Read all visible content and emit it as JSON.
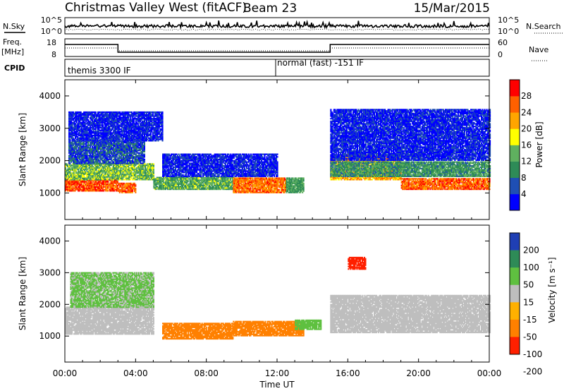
{
  "header": {
    "title": "Christmas Valley West (fitACF)",
    "beam": "Beam 23",
    "date": "15/Mar/2015"
  },
  "top_panels": {
    "nsky_label": "N.Sky",
    "nsearch_label": "N.Search",
    "nsky_tick_hi": "10^5",
    "nsky_tick_lo": "10^0",
    "freq_label": "Freq.",
    "freq_unit": "[MHz]",
    "freq_tick_hi": "18",
    "freq_tick_lo": "8",
    "nave_label": "Nave",
    "nave_tick_hi": "60",
    "nave_tick_lo": "0",
    "cpid_label": "CPID",
    "cpid_mode_1": "themis 3300 IF",
    "cpid_mode_2": "normal (fast) -151 IF"
  },
  "axes": {
    "xlabel": "Time UT",
    "x_ticks": [
      "00:00",
      "04:00",
      "08:00",
      "12:00",
      "16:00",
      "20:00",
      "00:00"
    ],
    "ylabel": "Slant Range [km]",
    "y_ticks": [
      "1000",
      "2000",
      "3000",
      "4000"
    ]
  },
  "colorbars": {
    "power": {
      "label": "Power [dB]",
      "ticks": [
        "4",
        "8",
        "12",
        "16",
        "20",
        "24",
        "28"
      ],
      "colors": [
        "#0000ff",
        "#1f4fb4",
        "#2e8b57",
        "#5fb05f",
        "#ffff00",
        "#ffa500",
        "#ff6000",
        "#ff0000"
      ]
    },
    "velocity": {
      "label": "Velocity [m s⁻¹]",
      "ticks": [
        "200",
        "100",
        "50",
        "15",
        "-15",
        "-50",
        "-100",
        "-200"
      ],
      "colors": [
        "#1f3fb4",
        "#2e8b57",
        "#5fc040",
        "#bebebe",
        "#ffb000",
        "#ff8000",
        "#ff2000"
      ]
    }
  },
  "chart_data": [
    {
      "type": "heatmap",
      "title": "",
      "xlabel": "Time UT",
      "ylabel": "Slant Range [km]",
      "ylim": [
        180,
        4500
      ],
      "xlim": [
        0,
        24
      ],
      "colorbar": "Power [dB]",
      "colorbar_range": [
        0,
        32
      ],
      "regions": [
        {
          "t0": 0.0,
          "t1": 3.0,
          "r0": 1050,
          "r1": 1450,
          "value": 27
        },
        {
          "t0": 3.0,
          "t1": 4.0,
          "r0": 1000,
          "r1": 1300,
          "value": 26
        },
        {
          "t0": 0.0,
          "t1": 5.0,
          "r0": 1400,
          "r1": 1900,
          "value": 14
        },
        {
          "t0": 0.2,
          "t1": 4.5,
          "r0": 1900,
          "r1": 2600,
          "value": 6
        },
        {
          "t0": 0.2,
          "t1": 5.5,
          "r0": 2600,
          "r1": 3500,
          "value": 3
        },
        {
          "t0": 5.0,
          "t1": 9.5,
          "r0": 1100,
          "r1": 1500,
          "value": 13
        },
        {
          "t0": 5.5,
          "t1": 12.0,
          "r0": 1500,
          "r1": 2200,
          "value": 3
        },
        {
          "t0": 9.5,
          "t1": 12.5,
          "r0": 1000,
          "r1": 1450,
          "value": 25
        },
        {
          "t0": 12.5,
          "t1": 13.5,
          "r0": 1000,
          "r1": 1450,
          "value": 12
        },
        {
          "t0": 15.0,
          "t1": 19.0,
          "r0": 1400,
          "r1": 2200,
          "value": 22
        },
        {
          "t0": 15.0,
          "t1": 24.0,
          "r0": 1500,
          "r1": 1950,
          "value": 11
        },
        {
          "t0": 19.0,
          "t1": 24.0,
          "r0": 1100,
          "r1": 1450,
          "value": 26
        },
        {
          "t0": 15.0,
          "t1": 24.0,
          "r0": 2000,
          "r1": 3600,
          "value": 3
        }
      ]
    },
    {
      "type": "heatmap",
      "title": "",
      "xlabel": "Time UT",
      "ylabel": "Slant Range [km]",
      "ylim": [
        180,
        4500
      ],
      "xlim": [
        0,
        24
      ],
      "colorbar": "Velocity [m s⁻¹]",
      "colorbar_range": [
        -200,
        200
      ],
      "regions": [
        {
          "t0": 0.0,
          "t1": 5.0,
          "r0": 1050,
          "r1": 1900,
          "value": 0
        },
        {
          "t0": 0.3,
          "t1": 5.0,
          "r0": 1900,
          "r1": 3000,
          "value": 20
        },
        {
          "t0": 5.5,
          "t1": 9.5,
          "r0": 900,
          "r1": 1400,
          "value": -70
        },
        {
          "t0": 9.5,
          "t1": 13.5,
          "r0": 1000,
          "r1": 1450,
          "value": -60
        },
        {
          "t0": 13.0,
          "t1": 14.5,
          "r0": 1200,
          "r1": 1500,
          "value": 40
        },
        {
          "t0": 15.0,
          "t1": 24.0,
          "r0": 1100,
          "r1": 2300,
          "value": 0
        },
        {
          "t0": 16.0,
          "t1": 17.0,
          "r0": 3100,
          "r1": 3500,
          "value": -200
        }
      ]
    }
  ]
}
